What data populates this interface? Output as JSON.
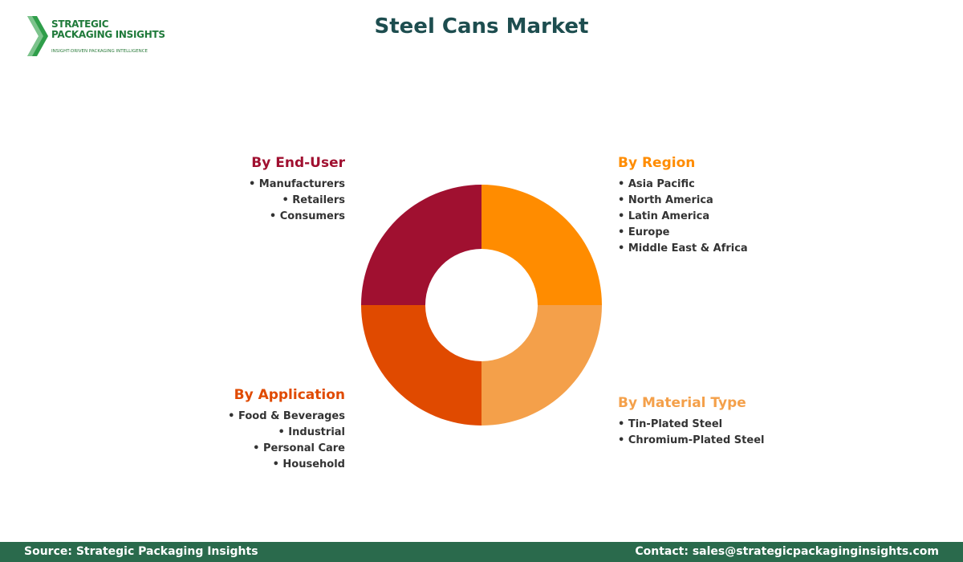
{
  "logo": {
    "line1": "STRATEGIC",
    "line2": "PACKAGING INSIGHTS",
    "tagline": "INSIGHT-DRIVEN PACKAGING INTELLIGENCE"
  },
  "title": "Steel Cans Market",
  "segments": [
    {
      "title": "By Region",
      "color": "#ff8c00",
      "items": [
        "Asia Pacific",
        "North America",
        "Latin America",
        "Europe",
        "Middle East & Africa"
      ]
    },
    {
      "title": "By Material Type",
      "color": "#f4a04a",
      "items": [
        "Tin-Plated Steel",
        "Chromium-Plated Steel"
      ]
    },
    {
      "title": "By Application",
      "color": "#e04a00",
      "items": [
        "Food & Beverages",
        "Industrial",
        "Personal Care",
        "Household"
      ]
    },
    {
      "title": "By End-User",
      "color": "#a01030",
      "items": [
        "Manufacturers",
        "Retailers",
        "Consumers"
      ]
    }
  ],
  "footer": {
    "source": "Source: Strategic Packaging Insights",
    "contact": "Contact: sales@strategicpackaginginsights.com"
  }
}
